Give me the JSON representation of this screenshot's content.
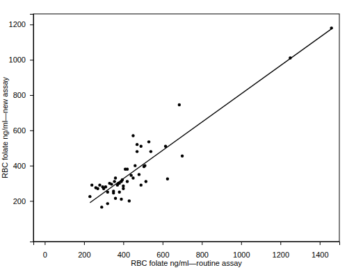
{
  "chart_data": {
    "type": "scatter",
    "x_label": "RBC folate ng/ml—routine assay",
    "y_label": "RBC folate ng/ml—new assay",
    "xlim": [
      -58,
      1500
    ],
    "ylim": [
      -30,
      1260
    ],
    "xticks": [
      0,
      200,
      400,
      600,
      800,
      1000,
      1200,
      1400
    ],
    "yticks": [
      200,
      400,
      600,
      800,
      1000,
      1200
    ],
    "grid": false,
    "series": [
      {
        "type": "scatter",
        "marker": "circle",
        "color": "#000000",
        "x": [
          230,
          240,
          260,
          270,
          280,
          290,
          295,
          300,
          310,
          320,
          320,
          330,
          340,
          350,
          350,
          355,
          360,
          360,
          370,
          375,
          380,
          380,
          390,
          390,
          395,
          400,
          400,
          410,
          420,
          420,
          430,
          440,
          450,
          450,
          460,
          470,
          470,
          480,
          490,
          490,
          505,
          510,
          515,
          530,
          540,
          615,
          625,
          685,
          700,
          1250,
          1460
        ],
        "values": [
          225,
          290,
          275,
          270,
          290,
          165,
          280,
          270,
          280,
          250,
          185,
          300,
          295,
          255,
          245,
          310,
          330,
          215,
          290,
          300,
          250,
          300,
          310,
          210,
          320,
          285,
          270,
          380,
          380,
          310,
          200,
          345,
          570,
          330,
          400,
          480,
          520,
          350,
          290,
          510,
          395,
          400,
          310,
          535,
          480,
          510,
          325,
          745,
          455,
          1010,
          1180
        ]
      },
      {
        "type": "line",
        "line_style": "solid",
        "color": "#000000",
        "x": [
          230,
          1460
        ],
        "values": [
          190,
          1175
        ]
      }
    ]
  }
}
